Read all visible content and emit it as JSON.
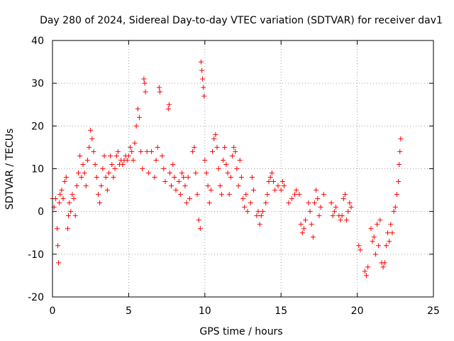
{
  "chart_data": {
    "type": "scatter",
    "title": "Day 280 of 2024, Sidereal Day-to-day VTEC variation (SDTVAR) for receiver dav1",
    "xlabel": "GPS time / hours",
    "ylabel": "SDTVAR / TECUs",
    "xlim": [
      0,
      25
    ],
    "ylim": [
      -20,
      40
    ],
    "xticks": [
      0,
      5,
      10,
      15,
      20,
      25
    ],
    "yticks": [
      -20,
      -10,
      0,
      10,
      20,
      30,
      40
    ],
    "xtick_labels": [
      "0",
      "5",
      "10",
      "15",
      "20",
      "25"
    ],
    "ytick_labels": [
      "-20",
      "-10",
      "0",
      "10",
      "20",
      "30",
      "40"
    ],
    "grid": true,
    "marker": "+",
    "color": "#ff0000",
    "series": [
      {
        "name": "SDTVAR",
        "points": [
          [
            0.0,
            3
          ],
          [
            0.1,
            1
          ],
          [
            0.2,
            3
          ],
          [
            0.3,
            -4
          ],
          [
            0.35,
            -8
          ],
          [
            0.4,
            -12
          ],
          [
            0.45,
            2
          ],
          [
            0.5,
            4
          ],
          [
            0.6,
            5
          ],
          [
            0.7,
            3
          ],
          [
            0.8,
            7
          ],
          [
            0.9,
            8
          ],
          [
            1.0,
            -4
          ],
          [
            1.05,
            -1
          ],
          [
            1.1,
            2
          ],
          [
            1.2,
            0
          ],
          [
            1.3,
            4
          ],
          [
            1.4,
            3
          ],
          [
            1.5,
            -1
          ],
          [
            1.6,
            6
          ],
          [
            1.7,
            9
          ],
          [
            1.8,
            13
          ],
          [
            1.9,
            8
          ],
          [
            2.0,
            11
          ],
          [
            2.1,
            9
          ],
          [
            2.2,
            6
          ],
          [
            2.3,
            12
          ],
          [
            2.4,
            15
          ],
          [
            2.5,
            19
          ],
          [
            2.6,
            17
          ],
          [
            2.7,
            14
          ],
          [
            2.8,
            11
          ],
          [
            2.9,
            8
          ],
          [
            3.0,
            4
          ],
          [
            3.1,
            2
          ],
          [
            3.2,
            6
          ],
          [
            3.3,
            10
          ],
          [
            3.4,
            13
          ],
          [
            3.5,
            8
          ],
          [
            3.6,
            5
          ],
          [
            3.7,
            9
          ],
          [
            3.8,
            13
          ],
          [
            3.9,
            11
          ],
          [
            4.0,
            8
          ],
          [
            4.1,
            10
          ],
          [
            4.2,
            13
          ],
          [
            4.3,
            14
          ],
          [
            4.4,
            11
          ],
          [
            4.5,
            12
          ],
          [
            4.6,
            11
          ],
          [
            4.7,
            12
          ],
          [
            4.8,
            13
          ],
          [
            4.9,
            12
          ],
          [
            5.0,
            13
          ],
          [
            5.1,
            15
          ],
          [
            5.2,
            14
          ],
          [
            5.3,
            12
          ],
          [
            5.4,
            16
          ],
          [
            5.5,
            20
          ],
          [
            5.6,
            24
          ],
          [
            5.7,
            22
          ],
          [
            5.8,
            14
          ],
          [
            5.9,
            10
          ],
          [
            6.0,
            31
          ],
          [
            6.05,
            30
          ],
          [
            6.1,
            28
          ],
          [
            6.2,
            14
          ],
          [
            6.3,
            9
          ],
          [
            6.5,
            14
          ],
          [
            6.7,
            8
          ],
          [
            6.8,
            12
          ],
          [
            6.9,
            15
          ],
          [
            7.0,
            29
          ],
          [
            7.05,
            28
          ],
          [
            7.2,
            13
          ],
          [
            7.3,
            10
          ],
          [
            7.4,
            7
          ],
          [
            7.6,
            24
          ],
          [
            7.65,
            25
          ],
          [
            7.7,
            9
          ],
          [
            7.8,
            6
          ],
          [
            7.9,
            11
          ],
          [
            8.0,
            8
          ],
          [
            8.1,
            5
          ],
          [
            8.3,
            7
          ],
          [
            8.4,
            4
          ],
          [
            8.5,
            9
          ],
          [
            8.6,
            8
          ],
          [
            8.7,
            6
          ],
          [
            8.8,
            2
          ],
          [
            8.9,
            8
          ],
          [
            9.0,
            3
          ],
          [
            9.2,
            14
          ],
          [
            9.3,
            15
          ],
          [
            9.4,
            9
          ],
          [
            9.5,
            4
          ],
          [
            9.6,
            -2
          ],
          [
            9.7,
            -4
          ],
          [
            9.75,
            35
          ],
          [
            9.8,
            33
          ],
          [
            9.85,
            31
          ],
          [
            9.9,
            29
          ],
          [
            9.95,
            27
          ],
          [
            10.0,
            12
          ],
          [
            10.1,
            9
          ],
          [
            10.2,
            6
          ],
          [
            10.3,
            2
          ],
          [
            10.4,
            5
          ],
          [
            10.5,
            14
          ],
          [
            10.6,
            17
          ],
          [
            10.7,
            18
          ],
          [
            10.8,
            15
          ],
          [
            10.9,
            10
          ],
          [
            11.0,
            6
          ],
          [
            11.1,
            4
          ],
          [
            11.2,
            12
          ],
          [
            11.3,
            15
          ],
          [
            11.4,
            11
          ],
          [
            11.5,
            9
          ],
          [
            11.6,
            4
          ],
          [
            11.7,
            8
          ],
          [
            11.8,
            13
          ],
          [
            11.9,
            15
          ],
          [
            12.0,
            14
          ],
          [
            12.1,
            10
          ],
          [
            12.2,
            6
          ],
          [
            12.3,
            12
          ],
          [
            12.4,
            8
          ],
          [
            12.5,
            3
          ],
          [
            12.6,
            1
          ],
          [
            12.7,
            4
          ],
          [
            12.8,
            0
          ],
          [
            13.0,
            2
          ],
          [
            13.1,
            8
          ],
          [
            13.2,
            5
          ],
          [
            13.4,
            -1
          ],
          [
            13.5,
            0
          ],
          [
            13.6,
            -3
          ],
          [
            13.7,
            -1
          ],
          [
            13.8,
            0
          ],
          [
            14.0,
            2
          ],
          [
            14.1,
            4
          ],
          [
            14.2,
            7
          ],
          [
            14.3,
            8
          ],
          [
            14.4,
            9
          ],
          [
            14.5,
            7
          ],
          [
            14.6,
            5
          ],
          [
            14.8,
            6
          ],
          [
            15.0,
            5
          ],
          [
            15.1,
            7
          ],
          [
            15.2,
            6
          ],
          [
            15.5,
            2
          ],
          [
            15.7,
            3
          ],
          [
            15.9,
            4
          ],
          [
            16.0,
            5
          ],
          [
            16.2,
            4
          ],
          [
            16.3,
            -3
          ],
          [
            16.4,
            -5
          ],
          [
            16.5,
            -4
          ],
          [
            16.6,
            -2
          ],
          [
            16.8,
            2
          ],
          [
            16.9,
            0
          ],
          [
            17.0,
            -3
          ],
          [
            17.1,
            -6
          ],
          [
            17.2,
            2
          ],
          [
            17.3,
            5
          ],
          [
            17.4,
            3
          ],
          [
            17.5,
            -1
          ],
          [
            17.6,
            1
          ],
          [
            17.8,
            4
          ],
          [
            18.3,
            2
          ],
          [
            18.4,
            -1
          ],
          [
            18.5,
            0
          ],
          [
            18.6,
            1
          ],
          [
            18.8,
            -1
          ],
          [
            18.9,
            -2
          ],
          [
            19.0,
            -1
          ],
          [
            19.1,
            3
          ],
          [
            19.2,
            4
          ],
          [
            19.3,
            -2
          ],
          [
            19.4,
            0
          ],
          [
            19.5,
            2
          ],
          [
            19.6,
            1
          ],
          [
            20.1,
            -8
          ],
          [
            20.2,
            -9
          ],
          [
            20.5,
            -14
          ],
          [
            20.6,
            -15
          ],
          [
            20.7,
            -13
          ],
          [
            20.9,
            -4
          ],
          [
            21.0,
            -7
          ],
          [
            21.1,
            -6
          ],
          [
            21.2,
            -10
          ],
          [
            21.3,
            -3
          ],
          [
            21.4,
            -8
          ],
          [
            21.5,
            -2
          ],
          [
            21.6,
            -12
          ],
          [
            21.7,
            -13
          ],
          [
            21.8,
            -12
          ],
          [
            21.9,
            -8
          ],
          [
            22.0,
            -5
          ],
          [
            22.1,
            -7
          ],
          [
            22.2,
            -3
          ],
          [
            22.3,
            -5
          ],
          [
            22.4,
            0
          ],
          [
            22.5,
            1
          ],
          [
            22.6,
            4
          ],
          [
            22.7,
            7
          ],
          [
            22.75,
            11
          ],
          [
            22.8,
            14
          ],
          [
            22.85,
            17
          ]
        ]
      }
    ]
  }
}
